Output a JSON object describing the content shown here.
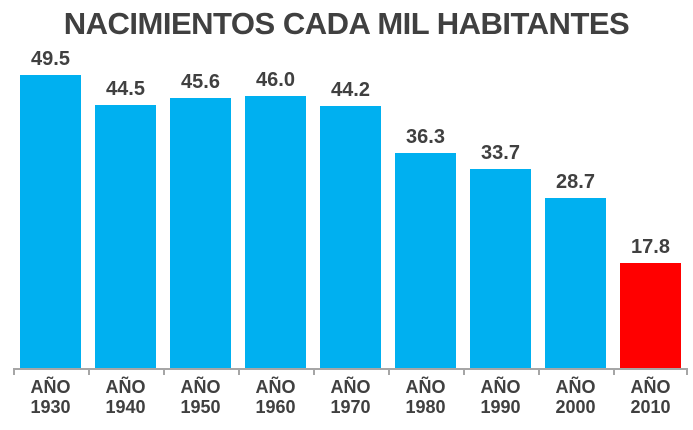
{
  "chart_data": {
    "type": "bar",
    "title": "NACIMIENTOS CADA MIL HABITANTES",
    "categories": [
      "AÑO 1930",
      "AÑO 1940",
      "AÑO 1950",
      "AÑO 1960",
      "AÑO 1970",
      "AÑO 1980",
      "AÑO 1990",
      "AÑO 2000",
      "AÑO 2010"
    ],
    "category_prefix": "AÑO",
    "category_years": [
      "1930",
      "1940",
      "1950",
      "1960",
      "1970",
      "1980",
      "1990",
      "2000",
      "2010"
    ],
    "values": [
      49.5,
      44.5,
      45.6,
      46.0,
      44.2,
      36.3,
      33.7,
      28.7,
      17.8
    ],
    "value_labels": [
      "49.5",
      "44.5",
      "45.6",
      "46.0",
      "44.2",
      "36.3",
      "33.7",
      "28.7",
      "17.8"
    ],
    "highlight_index": 8,
    "bar_color": "#00B0F0",
    "highlight_color": "#FF0000",
    "label_color": "#404040",
    "axis_color": "#A6A6A6",
    "background": "#FFFFFF",
    "xlabel": "",
    "ylabel": "",
    "ylim": [
      0,
      52
    ],
    "grid": false,
    "legend": "none"
  }
}
